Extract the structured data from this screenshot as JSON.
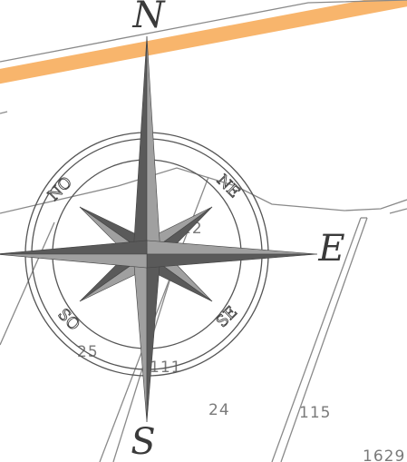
{
  "map": {
    "road_color": "#f8b56c",
    "line_color": "#8a8a8a",
    "parcel_labels": [
      "12",
      "25",
      "111",
      "24",
      "115",
      "1629"
    ]
  },
  "compass": {
    "north": "N",
    "east": "E",
    "south": "S",
    "northwest": "NO",
    "northeast": "NE",
    "southwest": "SO",
    "southeast": "SE",
    "dark_color": "#5a5a5a",
    "light_color": "#a0a0a0"
  }
}
